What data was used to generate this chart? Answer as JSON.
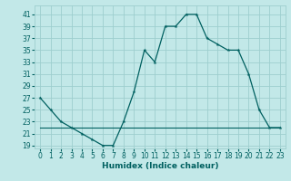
{
  "title": "",
  "xlabel": "Humidex (Indice chaleur)",
  "background_color": "#c2e8e8",
  "grid_color": "#9ecece",
  "line_color": "#006060",
  "xlim": [
    -0.5,
    23.5
  ],
  "ylim": [
    18.5,
    42.5
  ],
  "yticks": [
    19,
    21,
    23,
    25,
    27,
    29,
    31,
    33,
    35,
    37,
    39,
    41
  ],
  "xticks": [
    0,
    1,
    2,
    3,
    4,
    5,
    6,
    7,
    8,
    9,
    10,
    11,
    12,
    13,
    14,
    15,
    16,
    17,
    18,
    19,
    20,
    21,
    22,
    23
  ],
  "curve1_x": [
    0,
    1,
    2,
    3,
    4,
    5,
    6,
    7,
    8,
    9,
    10,
    11,
    12,
    13,
    14,
    15,
    16,
    17,
    18,
    19,
    20,
    21,
    22,
    23
  ],
  "curve1_y": [
    27,
    25,
    23,
    22,
    21,
    20,
    19,
    19,
    23,
    28,
    35,
    33,
    39,
    39,
    41,
    41,
    37,
    36,
    35,
    35,
    31,
    25,
    22,
    22
  ],
  "curve2_x": [
    0,
    23
  ],
  "curve2_y": [
    22,
    22
  ],
  "tick_fontsize": 5.5,
  "xlabel_fontsize": 6.5
}
